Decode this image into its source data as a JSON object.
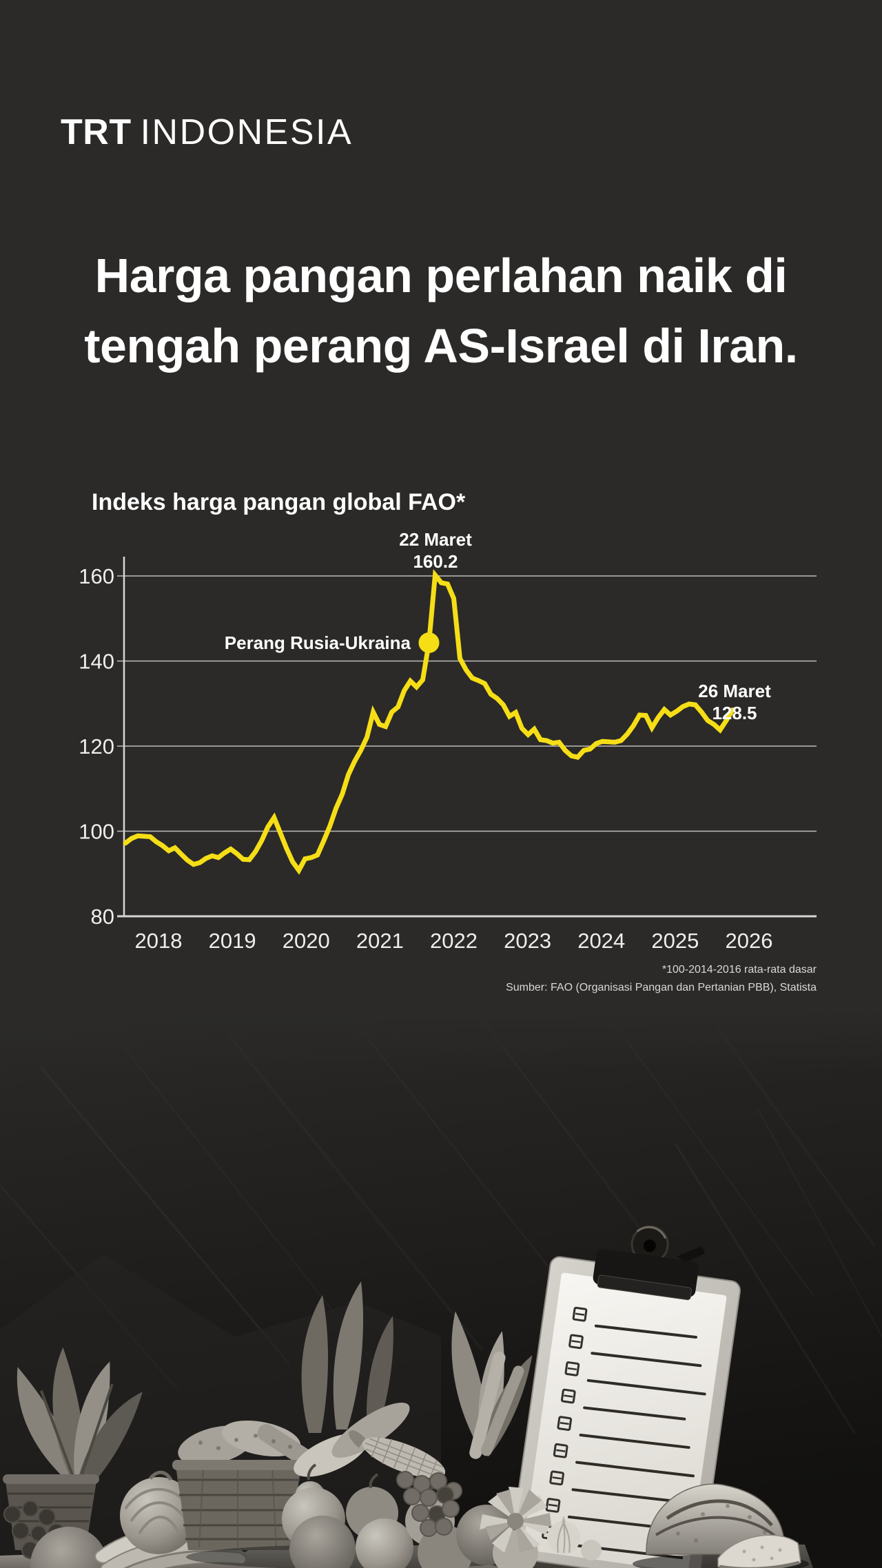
{
  "page": {
    "background": "#2b2a28"
  },
  "brand": {
    "logo_bold": "TRT",
    "logo_light": "INDONESIA"
  },
  "headline": {
    "line1": "Harga pangan perlahan naik di",
    "line2": "tengah perang AS-Israel di Iran."
  },
  "chart": {
    "title": "Indeks harga pangan global FAO*",
    "peak_annotation": {
      "line1": "22 Maret",
      "line2": "160.2"
    },
    "event_annotation": "Perang Rusia-Ukraina",
    "end_annotation": {
      "line1": "26 Maret",
      "line2": "128.5"
    },
    "footnote": "*100-2014-2016 rata-rata dasar",
    "source": "Sumber: FAO (Organisasi Pangan dan Pertanian PBB), Statista"
  },
  "chart_data": {
    "type": "line",
    "title": "Indeks harga pangan global FAO*",
    "x_tick_labels": [
      "2018",
      "2019",
      "2020",
      "2021",
      "2022",
      "2023",
      "2024",
      "2025",
      "2026"
    ],
    "y_ticks": [
      160,
      140,
      120,
      100,
      80
    ],
    "ylim": [
      80,
      165
    ],
    "x_range": [
      "2018-01",
      "2026-03"
    ],
    "grid": "horizontal",
    "legend": "none",
    "series": [
      {
        "name": "Indeks harga pangan FAO",
        "color": "#f6de17",
        "start_month": "2018-01",
        "interval": "monthly",
        "values": [
          97.2,
          98.3,
          98.9,
          98.8,
          98.7,
          97.5,
          96.6,
          95.4,
          96.1,
          94.6,
          93.2,
          92.2,
          92.6,
          93.6,
          94.2,
          93.8,
          94.9,
          95.8,
          94.7,
          93.4,
          93.3,
          95.2,
          97.8,
          101.0,
          103.2,
          99.6,
          96.0,
          92.8,
          90.8,
          93.5,
          93.8,
          94.4,
          97.7,
          101.2,
          105.4,
          108.7,
          113.3,
          116.4,
          119.0,
          122.1,
          128.0,
          125.1,
          124.6,
          128.0,
          129.2,
          133.0,
          135.3,
          133.9,
          135.6,
          144.3,
          160.2,
          158.4,
          158.1,
          154.7,
          140.6,
          137.9,
          136.0,
          135.4,
          134.7,
          132.2,
          131.2,
          129.7,
          127.0,
          127.9,
          124.2,
          122.7,
          124.0,
          121.5,
          121.3,
          120.7,
          120.9,
          119.0,
          117.7,
          117.4,
          119.0,
          119.3,
          120.6,
          121.1,
          121.0,
          120.9,
          121.3,
          122.8,
          124.8,
          127.3,
          127.2,
          124.3,
          126.7,
          128.6,
          127.3,
          128.2,
          129.3,
          129.9,
          129.7,
          128.0,
          126.0,
          125.1,
          123.8,
          126.0,
          128.5
        ]
      }
    ],
    "annotations": [
      {
        "type": "peak-label",
        "month": "2022-03",
        "value": 160.2,
        "label": "22 Maret"
      },
      {
        "type": "event-dot",
        "month": "2022-02",
        "value": 144.3,
        "label": "Perang Rusia-Ukraina"
      },
      {
        "type": "end-label",
        "month": "2026-03",
        "value": 128.5,
        "label": "26 Maret"
      }
    ]
  },
  "photo": {
    "description": "Foto hitam-putih: clipboard dengan daftar periksa kosong di antara roti, buah, sayuran dan keranjang di atas meja batu gelap"
  },
  "colors": {
    "background": "#2b2a28",
    "accent": "#f6de17",
    "text": "#ffffff",
    "gridline": "#bfbdb9",
    "muted": "#dad8d5"
  }
}
